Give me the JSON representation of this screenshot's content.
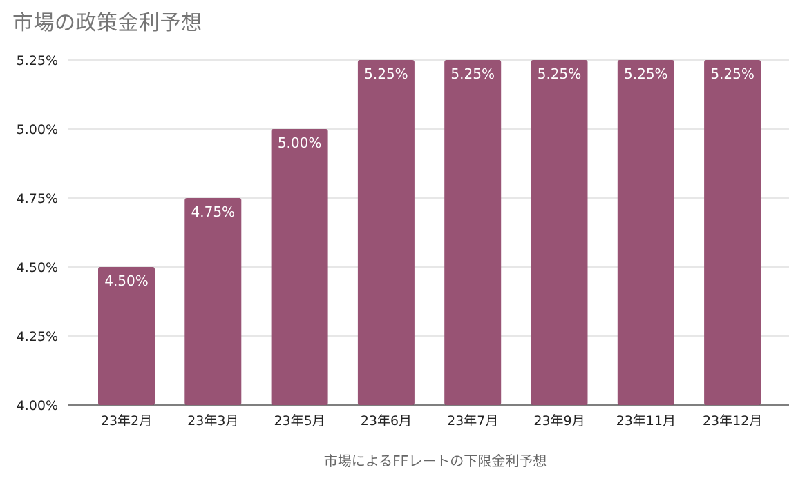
{
  "title": "市場の政策金利予想",
  "colors": {
    "bar": "#985374",
    "grid": "#cfcfcf",
    "axis": "#555555"
  },
  "chart_data": {
    "type": "bar",
    "title": "市場の政策金利予想",
    "xlabel": "市場によるFFレートの下限金利予想",
    "ylabel": "",
    "categories": [
      "23年2月",
      "23年3月",
      "23年5月",
      "23年6月",
      "23年7月",
      "23年9月",
      "23年11月",
      "23年12月"
    ],
    "values": [
      4.5,
      4.75,
      5.0,
      5.25,
      5.25,
      5.25,
      5.25,
      5.25
    ],
    "data_labels": [
      "4.50%",
      "4.75%",
      "5.00%",
      "5.25%",
      "5.25%",
      "5.25%",
      "5.25%",
      "5.25%"
    ],
    "ylim": [
      4.0,
      5.25
    ],
    "yticks": [
      4.0,
      4.25,
      4.5,
      4.75,
      5.0,
      5.25
    ],
    "ytick_labels": [
      "4.00%",
      "4.25%",
      "4.50%",
      "4.75%",
      "5.00%",
      "5.25%"
    ],
    "grid": true,
    "legend": "none"
  }
}
